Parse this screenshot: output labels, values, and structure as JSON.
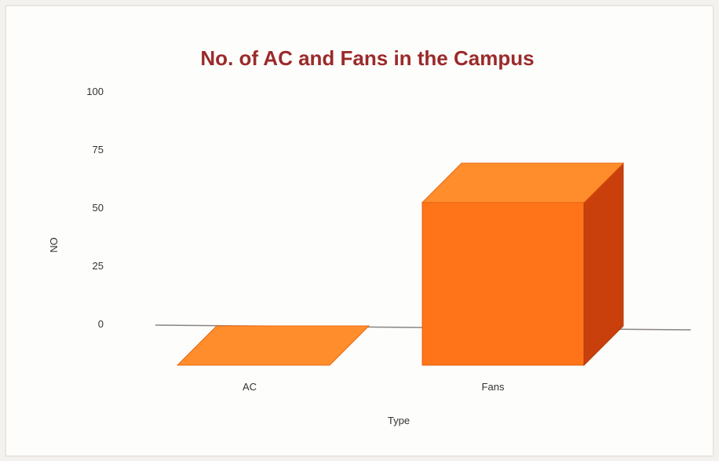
{
  "chart_data": {
    "type": "bar",
    "title": "No. of AC and Fans in the Campus",
    "xlabel": "Type",
    "ylabel": "NO",
    "categories": [
      "AC",
      "Fans"
    ],
    "values": [
      0,
      70
    ],
    "ylim": [
      0,
      100
    ],
    "yticks": [
      0,
      25,
      50,
      75,
      100
    ],
    "grid": false,
    "legend": "none",
    "colors": {
      "front": "#ff7418",
      "top": "#ff8d2c",
      "side": "#c9400d",
      "baseline": "#8a8580",
      "title": "#9b2a2a"
    }
  }
}
